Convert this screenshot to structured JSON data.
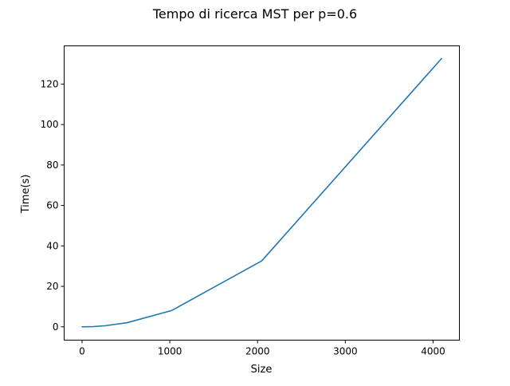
{
  "chart_data": {
    "type": "line",
    "title": "Tempo di ricerca MST per p=0.6",
    "xlabel": "Size",
    "ylabel": "Time(s)",
    "xlim": [
      -204,
      4300
    ],
    "ylim": [
      -6.6,
      138.9
    ],
    "xticks": [
      0,
      1000,
      2000,
      3000,
      4000
    ],
    "yticks": [
      0,
      20,
      40,
      60,
      80,
      100,
      120
    ],
    "grid": false,
    "series": [
      {
        "color": "#1f77b4",
        "x": [
          2,
          4,
          8,
          16,
          32,
          64,
          128,
          256,
          512,
          1024,
          2048,
          4096
        ],
        "y": [
          0.0,
          0.0,
          0.0,
          0.0,
          0.0,
          0.02,
          0.1,
          0.5,
          2.0,
          8.1,
          32.6,
          132.6
        ]
      }
    ]
  }
}
